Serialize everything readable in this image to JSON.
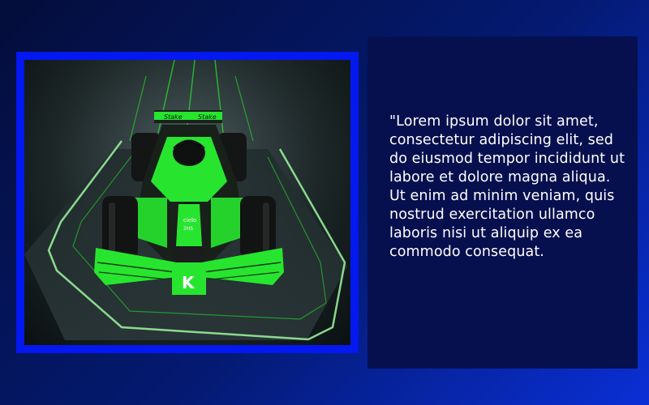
{
  "image": {
    "icon": "formula-one-car-image",
    "livery_sponsor_text": "Stake",
    "nose_letter": "K",
    "accent_color": "#27e52e",
    "frame_color": "#0418f0"
  },
  "panel": {
    "text": "\"Lorem ipsum dolor sit amet, consectetur adipiscing elit, sed do eiusmod tempor incididunt ut labore et dolore magna aliqua. Ut enim ad minim veniam, quis nostrud exercitation ullamco laboris nisi ut aliquip ex ea commodo consequat."
  }
}
